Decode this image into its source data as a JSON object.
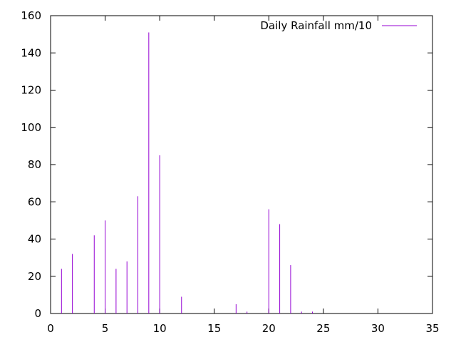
{
  "chart_data": {
    "type": "bar",
    "style": "impulses",
    "title": "",
    "xlabel": "",
    "ylabel": "",
    "xlim": [
      0,
      35
    ],
    "ylim": [
      0,
      160
    ],
    "xticks": [
      0,
      5,
      10,
      15,
      20,
      25,
      30,
      35
    ],
    "yticks": [
      0,
      20,
      40,
      60,
      80,
      100,
      120,
      140,
      160
    ],
    "grid": false,
    "legend_position": "top-right",
    "series": [
      {
        "name": "Daily Rainfall mm/10",
        "color": "#9400d3",
        "points": [
          {
            "x": 1,
            "y": 24
          },
          {
            "x": 2,
            "y": 32
          },
          {
            "x": 3,
            "y": 0
          },
          {
            "x": 4,
            "y": 42
          },
          {
            "x": 5,
            "y": 50
          },
          {
            "x": 6,
            "y": 24
          },
          {
            "x": 7,
            "y": 28
          },
          {
            "x": 8,
            "y": 63
          },
          {
            "x": 9,
            "y": 151
          },
          {
            "x": 10,
            "y": 85
          },
          {
            "x": 11,
            "y": 0
          },
          {
            "x": 12,
            "y": 9
          },
          {
            "x": 13,
            "y": 0
          },
          {
            "x": 14,
            "y": 0
          },
          {
            "x": 15,
            "y": 0
          },
          {
            "x": 16,
            "y": 0
          },
          {
            "x": 17,
            "y": 5
          },
          {
            "x": 18,
            "y": 1
          },
          {
            "x": 19,
            "y": 0
          },
          {
            "x": 20,
            "y": 56
          },
          {
            "x": 21,
            "y": 48
          },
          {
            "x": 22,
            "y": 26
          },
          {
            "x": 23,
            "y": 1
          },
          {
            "x": 24,
            "y": 1
          },
          {
            "x": 25,
            "y": 0
          },
          {
            "x": 26,
            "y": 0
          },
          {
            "x": 27,
            "y": 0
          },
          {
            "x": 28,
            "y": 0
          },
          {
            "x": 29,
            "y": 0
          },
          {
            "x": 30,
            "y": 0
          },
          {
            "x": 31,
            "y": 0
          }
        ]
      }
    ]
  }
}
